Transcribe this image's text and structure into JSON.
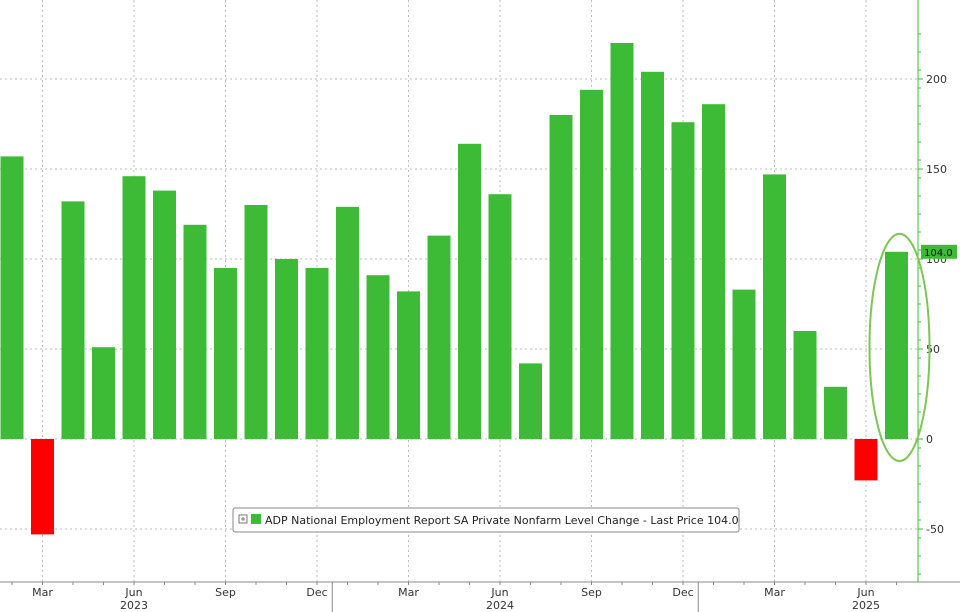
{
  "chart_data": {
    "type": "bar",
    "x": [
      "Feb 2023",
      "Mar 2023",
      "Apr 2023",
      "May 2023",
      "Jun 2023",
      "Jul 2023",
      "Aug 2023",
      "Sep 2023",
      "Oct 2023",
      "Nov 2023",
      "Dec 2023",
      "Jan 2024",
      "Feb 2024",
      "Mar 2024",
      "Apr 2024",
      "May 2024",
      "Jun 2024",
      "Jul 2024",
      "Aug 2024",
      "Sep 2024",
      "Oct 2024",
      "Nov 2024",
      "Dec 2024",
      "Jan 2025",
      "Feb 2025",
      "Mar 2025",
      "Apr 2025",
      "May 2025",
      "Jun 2025",
      "Jul 2025"
    ],
    "values": [
      157,
      -53,
      132,
      51,
      146,
      138,
      119,
      95,
      130,
      100,
      95,
      129,
      91,
      82,
      113,
      164,
      136,
      42,
      180,
      194,
      220,
      204,
      176,
      186,
      83,
      147,
      60,
      29,
      -23,
      104
    ],
    "ylim": [
      -78,
      245
    ],
    "y_ticks": [
      -50,
      0,
      50,
      100,
      150,
      200
    ],
    "x_tick_labels": [
      {
        "label": "Mar",
        "index": 1
      },
      {
        "label": "Jun",
        "index": 4
      },
      {
        "label": "Sep",
        "index": 7
      },
      {
        "label": "Dec",
        "index": 10
      },
      {
        "label": "Mar",
        "index": 13
      },
      {
        "label": "Jun",
        "index": 16
      },
      {
        "label": "Sep",
        "index": 19
      },
      {
        "label": "Dec",
        "index": 22
      },
      {
        "label": "Mar",
        "index": 25
      },
      {
        "label": "Jun",
        "index": 28
      }
    ],
    "year_labels": [
      {
        "label": "2023",
        "index": 4
      },
      {
        "label": "2024",
        "index": 16
      },
      {
        "label": "2025",
        "index": 28
      }
    ],
    "year_dividers": [
      10.5,
      22.5
    ],
    "legend": "ADP National Employment Report SA Private Nonfarm Level Change - Last Price 104.0",
    "last_price_label": "104.0",
    "highlighted_index": 29,
    "grid": true,
    "legend_position": "bottom-center",
    "colors": {
      "positive": "#3dbb37",
      "negative": "#ff0000",
      "highlight_ellipse": "#7cc653",
      "axis": "#3dbb37",
      "grid": "#bbbbbb"
    }
  }
}
